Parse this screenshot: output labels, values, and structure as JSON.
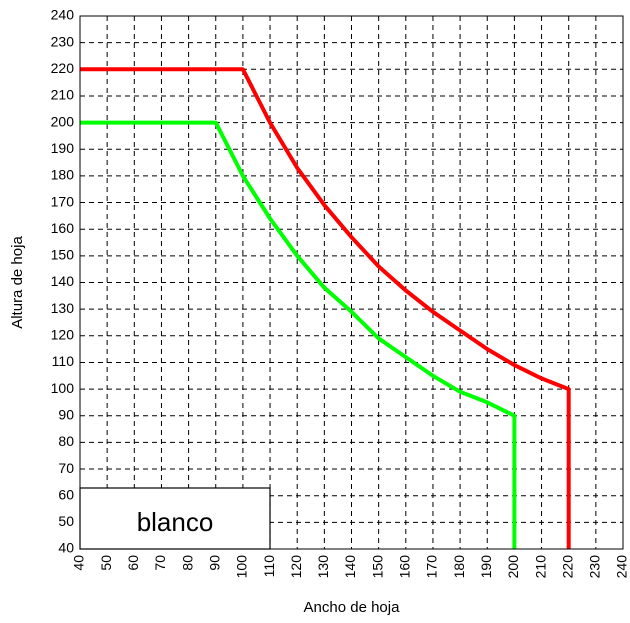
{
  "chart_data": {
    "type": "line",
    "xlabel": "Ancho de hoja",
    "ylabel": "Altura de hoja",
    "xlim": [
      40,
      240
    ],
    "ylim": [
      40,
      240
    ],
    "xticks": [
      "40",
      "50",
      "60",
      "70",
      "80",
      "90",
      "100",
      "110",
      "120",
      "130",
      "140",
      "150",
      "160",
      "170",
      "180",
      "190",
      "200",
      "210",
      "220",
      "230",
      "240"
    ],
    "yticks": [
      "40",
      "50",
      "60",
      "70",
      "80",
      "90",
      "100",
      "110",
      "120",
      "130",
      "140",
      "150",
      "160",
      "170",
      "180",
      "190",
      "200",
      "210",
      "220",
      "230",
      "240"
    ],
    "grid": true,
    "annotation": "blanco",
    "series": [
      {
        "color": "#ff0000",
        "points": [
          [
            40,
            220
          ],
          [
            100,
            220
          ],
          [
            110,
            200
          ],
          [
            120,
            183
          ],
          [
            130,
            169
          ],
          [
            140,
            157
          ],
          [
            150,
            146
          ],
          [
            160,
            137
          ],
          [
            170,
            129
          ],
          [
            180,
            122
          ],
          [
            190,
            115
          ],
          [
            200,
            109
          ],
          [
            210,
            104
          ],
          [
            220,
            100
          ],
          [
            220,
            40
          ]
        ]
      },
      {
        "color": "#00ff00",
        "points": [
          [
            40,
            200
          ],
          [
            90,
            200
          ],
          [
            100,
            180
          ],
          [
            110,
            164
          ],
          [
            120,
            150
          ],
          [
            130,
            138
          ],
          [
            140,
            129
          ],
          [
            150,
            119
          ],
          [
            160,
            112
          ],
          [
            170,
            105
          ],
          [
            180,
            99
          ],
          [
            190,
            95
          ],
          [
            200,
            90
          ],
          [
            200,
            40
          ]
        ]
      }
    ]
  }
}
